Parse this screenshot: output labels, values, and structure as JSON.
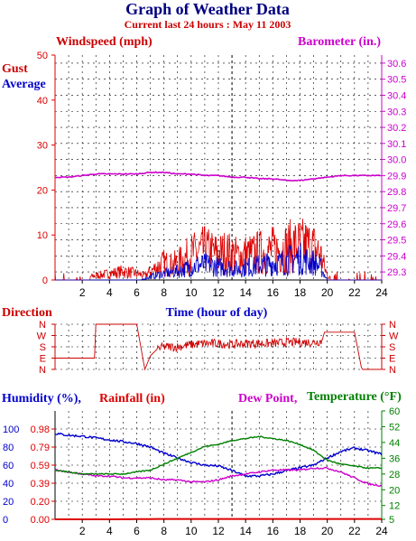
{
  "title": "Graph of Weather Data",
  "subtitle": "Current last 24 hours : May 11 2003",
  "colors": {
    "gust": "#dd0000",
    "average": "#0000cc",
    "barometer": "#cc00cc",
    "direction": "#cc0000",
    "humidity": "#0000cc",
    "rainfall": "#dd0000",
    "dewpoint": "#cc00cc",
    "temperature": "#008000",
    "grid": "#000000",
    "now_marker": "#000000"
  },
  "chart_data": [
    {
      "type": "line",
      "panel": "wind",
      "left_axis_label": "Windspeed (mph)",
      "right_axis_label": "Barometer (in.)",
      "xlabel": "Time (hour of day)",
      "x_ticks": [
        "2",
        "4",
        "6",
        "8",
        "10",
        "12",
        "14",
        "16",
        "18",
        "20",
        "22",
        "24"
      ],
      "xlim": [
        0,
        24
      ],
      "ylim_left": [
        0,
        50
      ],
      "y_ticks_left": [
        "0",
        "10",
        "20",
        "30",
        "40",
        "50"
      ],
      "ylim_right": [
        29.25,
        30.65
      ],
      "y_ticks_right": [
        "29.3",
        "29.4",
        "29.5",
        "29.6",
        "29.7",
        "29.8",
        "29.9",
        "30.0",
        "30.1",
        "30.2",
        "30.3",
        "30.4",
        "30.5",
        "30.6"
      ],
      "now_hour": 13,
      "series": [
        {
          "name": "Gust",
          "axis": "left",
          "kind": "noise",
          "x": [
            0,
            2,
            3,
            4,
            5,
            6,
            6.6,
            7,
            7.5,
            8,
            8.5,
            9,
            9.5,
            10,
            10.5,
            11,
            11.5,
            12,
            12.5,
            13,
            13.5,
            14,
            14.5,
            15,
            15.5,
            16,
            16.5,
            17,
            17.5,
            18,
            18.5,
            19,
            19.5,
            20,
            20.5,
            21,
            22,
            23,
            24
          ],
          "y": [
            0,
            0.5,
            1,
            1.5,
            2,
            1.5,
            1,
            2,
            3,
            4,
            3.5,
            4,
            5,
            6,
            6.5,
            7,
            6.5,
            6,
            6.5,
            6,
            5.5,
            6,
            6,
            6.5,
            6.5,
            7,
            7,
            7.5,
            8,
            8,
            8,
            7.5,
            6,
            1,
            0.5,
            0.5,
            0.5,
            0.5,
            0.5
          ]
        },
        {
          "name": "Average",
          "axis": "left",
          "kind": "noise",
          "x": [
            0,
            2,
            4,
            6,
            6.6,
            7,
            8,
            9,
            10,
            10.5,
            11,
            11.5,
            12,
            12.5,
            13,
            13.5,
            14,
            14.5,
            15,
            15.5,
            16,
            16.5,
            17,
            17.5,
            18,
            18.5,
            19,
            19.5,
            20,
            21,
            24
          ],
          "y": [
            0,
            0,
            0,
            0,
            0.3,
            0.8,
            1.5,
            2,
            3,
            3.5,
            3.5,
            3.5,
            3,
            3,
            2.8,
            2.5,
            3,
            3,
            3.5,
            3.5,
            4,
            4,
            4.5,
            5,
            5,
            4.5,
            4,
            3,
            0,
            0,
            0
          ]
        },
        {
          "name": "Barometer",
          "axis": "right",
          "x": [
            0,
            1,
            2,
            3,
            4,
            5,
            6,
            7,
            8,
            9,
            10,
            11,
            12,
            13,
            14,
            15,
            16,
            17,
            18,
            19,
            20,
            21,
            22,
            23,
            24
          ],
          "y": [
            29.89,
            29.89,
            29.9,
            29.91,
            29.91,
            29.91,
            29.91,
            29.92,
            29.92,
            29.91,
            29.91,
            29.9,
            29.9,
            29.89,
            29.89,
            29.88,
            29.88,
            29.87,
            29.87,
            29.88,
            29.89,
            29.9,
            29.9,
            29.9,
            29.9
          ]
        }
      ]
    },
    {
      "type": "line",
      "panel": "direction",
      "label": "Direction",
      "direction_ticks": [
        "N",
        "W",
        "S",
        "E",
        "N"
      ],
      "xlim": [
        0,
        24
      ],
      "ylim": [
        0,
        4
      ],
      "series": [
        {
          "name": "Direction",
          "kind": "noise",
          "x": [
            0,
            2.5,
            2.9,
            3,
            3.5,
            4,
            5,
            6,
            6.6,
            7,
            7.5,
            8,
            9,
            10,
            11,
            12,
            13,
            14,
            15,
            16,
            17,
            18,
            19,
            19.6,
            19.8,
            20,
            21,
            22,
            22.5,
            22.6,
            23,
            24
          ],
          "y": [
            1,
            1,
            1,
            4,
            4,
            4,
            4,
            4,
            0,
            1.2,
            1.8,
            2,
            2,
            2.2,
            2.3,
            2.3,
            2.2,
            2.3,
            2.3,
            2.3,
            2.4,
            2.4,
            2.4,
            2.5,
            3.3,
            3.3,
            3.3,
            3.3,
            0.2,
            0,
            0,
            0
          ]
        }
      ]
    },
    {
      "type": "line",
      "panel": "humidity",
      "humidity_label": "Humidity (%),",
      "rainfall_label": "Rainfall (in)",
      "dewpoint_label": "Dew Point,",
      "temperature_label": "Temperature (°F)",
      "xlim": [
        0,
        24
      ],
      "ylim_humidity": [
        0,
        120
      ],
      "y_ticks_humidity": [
        "0",
        "20",
        "40",
        "60",
        "80",
        "100"
      ],
      "y_ticks_rainfall": [
        "0.00",
        "0.20",
        "0.39",
        "0.59",
        "0.79",
        "0.98"
      ],
      "ylim_temp": [
        5,
        60
      ],
      "y_ticks_temp": [
        "5",
        "12",
        "20",
        "28",
        "36",
        "44",
        "52",
        "60"
      ],
      "now_hour": 13,
      "series": [
        {
          "name": "Humidity",
          "axis": "humidity",
          "x": [
            0,
            1,
            2,
            3,
            4,
            5,
            6,
            7,
            8,
            9,
            10,
            11,
            12,
            13,
            14,
            15,
            16,
            17,
            18,
            19,
            20,
            21,
            22,
            23,
            24
          ],
          "y": [
            95,
            93,
            92,
            90,
            88,
            86,
            84,
            80,
            73,
            68,
            63,
            60,
            59,
            54,
            48,
            48,
            50,
            54,
            57,
            60,
            68,
            75,
            79,
            76,
            72
          ]
        },
        {
          "name": "Rainfall",
          "axis": "humidity",
          "x": [
            0,
            4,
            8,
            12,
            16,
            20,
            24
          ],
          "y": [
            0,
            0,
            0.4,
            0.4,
            0.4,
            0.4,
            0.4
          ]
        },
        {
          "name": "Dew Point",
          "axis": "temp",
          "x": [
            0,
            1,
            2,
            3,
            4,
            5,
            6,
            7,
            8,
            9,
            10,
            11,
            12,
            13,
            14,
            15,
            16,
            17,
            18,
            19,
            20,
            21,
            22,
            23,
            24
          ],
          "y": [
            30,
            29,
            28,
            27,
            27,
            26,
            26,
            26,
            25,
            25,
            24,
            24,
            25,
            27,
            28,
            29,
            30,
            30,
            30,
            31,
            31,
            29,
            26,
            23,
            22
          ]
        },
        {
          "name": "Temperature",
          "axis": "temp",
          "x": [
            0,
            1,
            2,
            3,
            4,
            5,
            6,
            7,
            8,
            9,
            10,
            11,
            12,
            13,
            14,
            15,
            16,
            17,
            18,
            19,
            20,
            21,
            22,
            23,
            24
          ],
          "y": [
            30,
            29,
            28,
            28,
            28,
            28,
            29,
            30,
            33,
            36,
            39,
            42,
            43,
            45,
            46,
            47,
            46,
            45,
            43,
            40,
            35,
            33,
            32,
            31,
            31
          ]
        }
      ]
    }
  ]
}
